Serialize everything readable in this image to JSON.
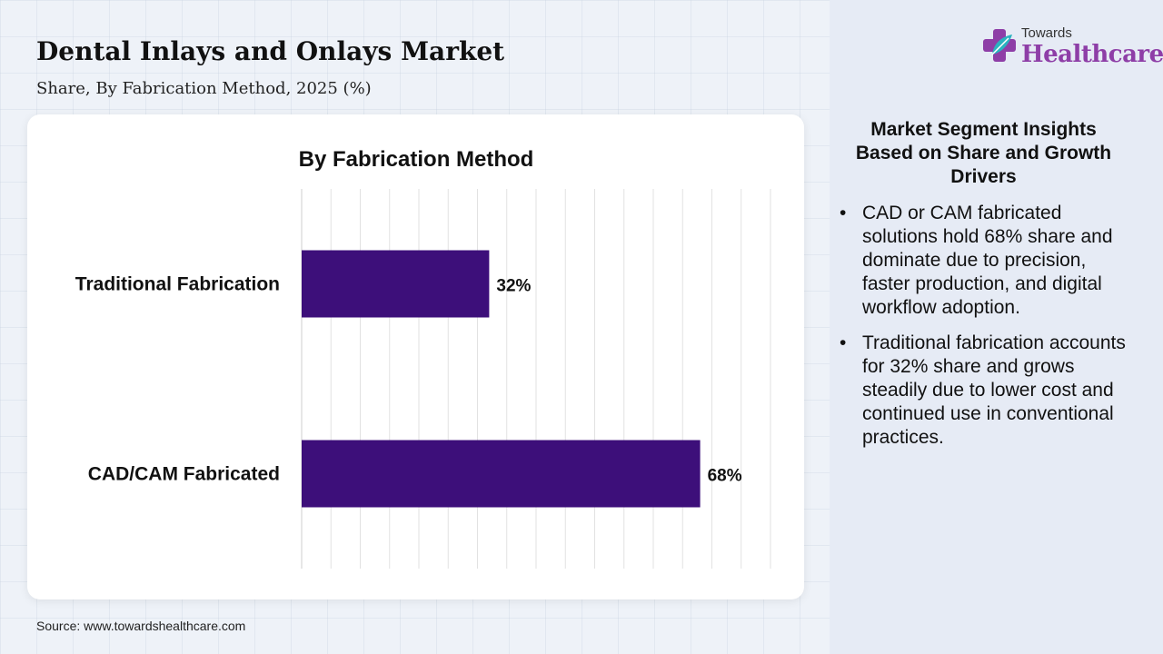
{
  "header": {
    "title": "Dental Inlays and Onlays Market",
    "subtitle": "Share, By Fabrication Method, 2025 (%)"
  },
  "logo": {
    "top_text": "Towards",
    "main_text": "Healthcare",
    "icon": "cross-leaf-icon"
  },
  "chart_data": {
    "type": "bar",
    "orientation": "horizontal",
    "title": "By Fabrication Method",
    "categories": [
      "Traditional Fabrication",
      "CAD/CAM Fabricated"
    ],
    "values": [
      32,
      68
    ],
    "data_labels": [
      "32%",
      "68%"
    ],
    "xlim": [
      0,
      80
    ],
    "grid": true,
    "bar_color": "#3d0f7a"
  },
  "insights": {
    "title": "Market Segment Insights Based on Share and Growth Drivers",
    "items": [
      "CAD or CAM fabricated solutions hold 68% share and dominate due to precision, faster production, and digital workflow adoption.",
      "Traditional fabrication accounts for 32% share and grows steadily due to lower cost and continued use in conventional practices."
    ]
  },
  "source": "Source: www.towardshealthcare.com"
}
